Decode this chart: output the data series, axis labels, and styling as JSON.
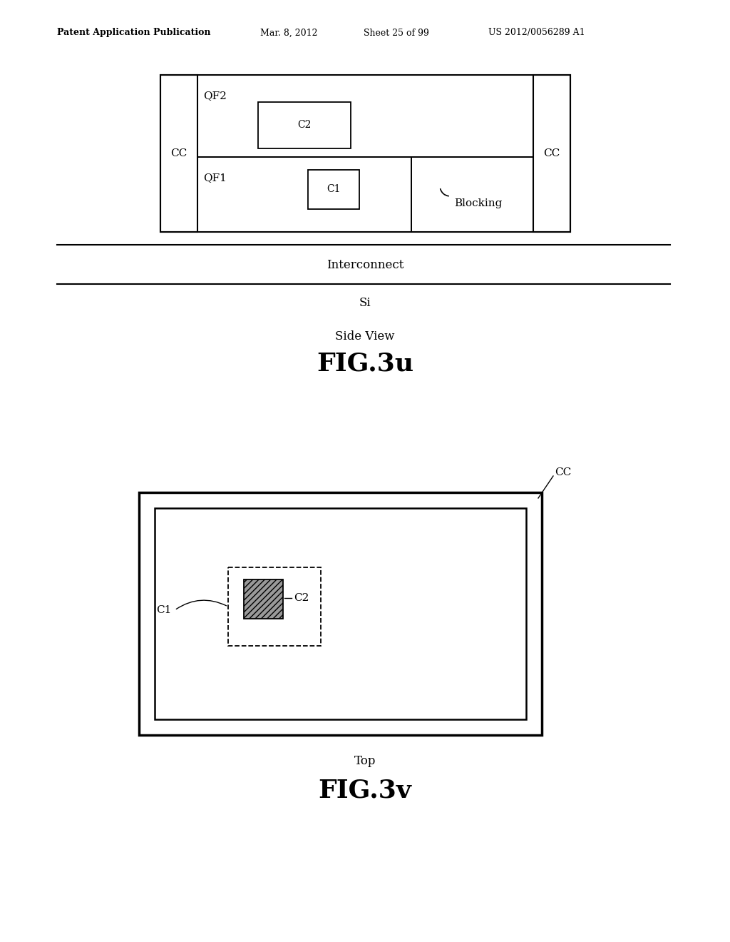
{
  "bg_color": "#ffffff",
  "header_text": "Patent Application Publication",
  "header_date": "Mar. 8, 2012",
  "header_sheet": "Sheet 25 of 99",
  "header_patent": "US 2012/0056289 A1",
  "fig3u": {
    "label": "FIG.3u",
    "sublabel": "Side View",
    "interconnect_label": "Interconnect",
    "si_label": "Si",
    "cc_left_label": "CC",
    "cc_right_label": "CC",
    "qf2_label": "QF2",
    "qf1_label": "QF1",
    "c2_label": "C2",
    "c1_label": "C1",
    "blocking_label": "Blocking"
  },
  "fig3v": {
    "label": "FIG.3v",
    "sublabel": "Top",
    "cc_label": "CC",
    "c1_label": "C1",
    "c2_label": "C2"
  }
}
